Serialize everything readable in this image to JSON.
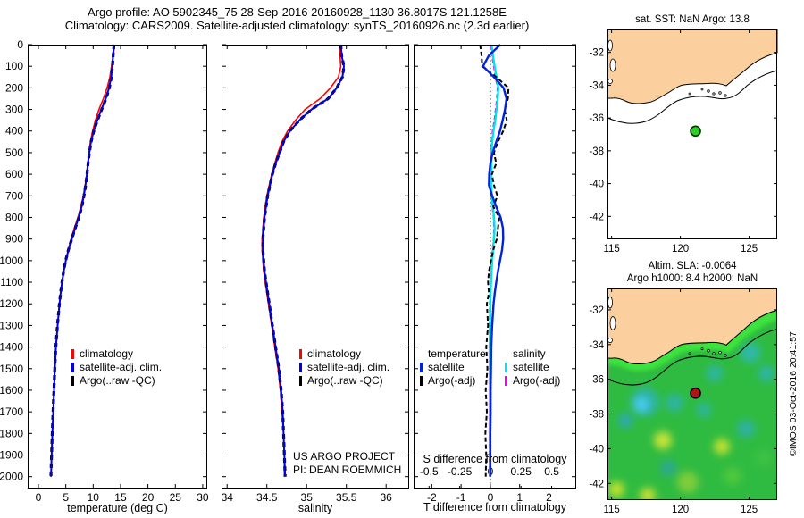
{
  "header": {
    "title_line1": "Argo profile: AO 5902345_75 28-Sep-2016 20160928_1130 36.8017S 121.1258E",
    "title_line2": "Climatology: CARS2009. Satellite-adjusted climatology: synTS_20160926.nc (2.3d earlier)"
  },
  "colors": {
    "climatology": "#ff0000",
    "satellite_adj": "#0000e0",
    "argo_raw": "#000000",
    "diff_T_satellite": "#0022dd",
    "diff_T_argo": "#000000",
    "diff_S_satellite": "#00e5e5",
    "diff_S_argo": "#ee00ee",
    "land": "#fbcf9e",
    "sea_base": "#2fbb41",
    "coast_glow": "#3ce33d",
    "marker_sst": "#2dcc2d",
    "marker_sla": "#b01515",
    "frame": "#000000"
  },
  "chart_data": [
    {
      "id": "temperature_profile",
      "type": "line",
      "xlabel": "temperature (deg C)",
      "xlim": [
        -1.96,
        30.83
      ],
      "ylim": [
        0,
        2055
      ],
      "xticks": [
        "0",
        "5",
        "10",
        "15",
        "20",
        "25",
        "30"
      ],
      "yticks": [
        0,
        100,
        200,
        300,
        400,
        500,
        600,
        700,
        800,
        900,
        1000,
        1100,
        1200,
        1300,
        1400,
        1500,
        1600,
        1700,
        1800,
        1900,
        2000
      ],
      "show_ylabels": true,
      "depth": [
        0,
        50,
        100,
        150,
        200,
        250,
        300,
        350,
        400,
        450,
        500,
        550,
        600,
        650,
        700,
        750,
        800,
        850,
        900,
        950,
        1000,
        1050,
        1100,
        1150,
        1200,
        1300,
        1400,
        1500,
        1600,
        1700,
        1800,
        1900,
        2000
      ],
      "series": [
        {
          "name": "climatology",
          "color": "#ff0000",
          "width": 1.6,
          "dash": "",
          "z": 1,
          "values": [
            13.9,
            13.7,
            13.35,
            13.05,
            12.55,
            11.85,
            11.05,
            10.4,
            9.9,
            9.5,
            9.25,
            9.0,
            8.8,
            8.55,
            8.2,
            7.75,
            7.2,
            6.55,
            5.95,
            5.45,
            5.0,
            4.6,
            4.3,
            4.05,
            3.85,
            3.5,
            3.2,
            3.0,
            2.85,
            2.7,
            2.55,
            2.42,
            2.3
          ]
        },
        {
          "name": "satellite-adj-clim",
          "color": "#0000e0",
          "width": 2,
          "dash": "",
          "z": 3,
          "values": [
            13.8,
            13.62,
            13.5,
            13.3,
            12.9,
            12.3,
            11.5,
            10.75,
            10.1,
            9.6,
            9.3,
            9.05,
            8.85,
            8.6,
            8.3,
            7.9,
            7.35,
            6.7,
            6.1,
            5.5,
            5.0,
            4.62,
            4.32,
            4.06,
            3.85,
            3.5,
            3.2,
            3.0,
            2.85,
            2.7,
            2.55,
            2.42,
            2.3
          ]
        },
        {
          "name": "argo-raw-qc",
          "color": "#000000",
          "width": 3.2,
          "dash": "5,4",
          "z": 2,
          "values": [
            13.8,
            13.65,
            13.52,
            13.32,
            12.95,
            12.35,
            11.55,
            10.8,
            10.12,
            9.63,
            9.32,
            9.06,
            8.87,
            8.63,
            8.32,
            7.93,
            7.38,
            6.72,
            6.08,
            5.48,
            4.98,
            4.6,
            4.3,
            4.04,
            3.83,
            3.48,
            3.18,
            2.98,
            2.83,
            2.68,
            2.53,
            2.4,
            2.28
          ]
        }
      ],
      "legend": [
        {
          "label": "climatology",
          "color": "#ff0000"
        },
        {
          "label": "satellite-adj. clim.",
          "color": "#0000e0"
        },
        {
          "label": "Argo(..raw -QC)",
          "color": "#000000"
        }
      ]
    },
    {
      "id": "salinity_profile",
      "type": "line",
      "xlabel": "salinity",
      "xlim": [
        33.93,
        36.29
      ],
      "ylim": [
        0,
        2055
      ],
      "xticks": [
        "34",
        "34.5",
        "35",
        "35.5",
        "36"
      ],
      "yticks": [
        0,
        100,
        200,
        300,
        400,
        500,
        600,
        700,
        800,
        900,
        1000,
        1100,
        1200,
        1300,
        1400,
        1500,
        1600,
        1700,
        1800,
        1900,
        2000
      ],
      "show_ylabels": false,
      "annotation_line1": "US ARGO PROJECT",
      "annotation_line2": "PI: DEAN ROEMMICH",
      "depth": [
        0,
        50,
        100,
        150,
        200,
        250,
        300,
        350,
        400,
        450,
        500,
        550,
        600,
        650,
        700,
        750,
        800,
        850,
        900,
        950,
        1000,
        1050,
        1100,
        1150,
        1200,
        1300,
        1400,
        1500,
        1600,
        1700,
        1800,
        1900,
        2000
      ],
      "series": [
        {
          "name": "climatology",
          "color": "#ff0000",
          "width": 1.6,
          "dash": "",
          "z": 1,
          "values": [
            35.42,
            35.42,
            35.43,
            35.4,
            35.3,
            35.17,
            34.98,
            34.86,
            34.76,
            34.69,
            34.64,
            34.6,
            34.56,
            34.53,
            34.5,
            34.48,
            34.46,
            34.45,
            34.44,
            34.44,
            34.45,
            34.46,
            34.48,
            34.5,
            34.52,
            34.56,
            34.6,
            34.64,
            34.67,
            34.69,
            34.71,
            34.72,
            34.72
          ]
        },
        {
          "name": "satellite-adj-clim",
          "color": "#0000e0",
          "width": 2,
          "dash": "",
          "z": 3,
          "values": [
            35.43,
            35.44,
            35.47,
            35.45,
            35.38,
            35.27,
            35.06,
            34.91,
            34.79,
            34.71,
            34.66,
            34.61,
            34.57,
            34.54,
            34.51,
            34.49,
            34.47,
            34.46,
            34.45,
            34.45,
            34.46,
            34.47,
            34.49,
            34.51,
            34.53,
            34.57,
            34.61,
            34.65,
            34.68,
            34.7,
            34.71,
            34.72,
            34.73
          ]
        },
        {
          "name": "argo-raw-qc",
          "color": "#000000",
          "width": 3.2,
          "dash": "5,4",
          "z": 2,
          "values": [
            35.43,
            35.44,
            35.47,
            35.45,
            35.38,
            35.27,
            35.06,
            34.91,
            34.79,
            34.71,
            34.66,
            34.61,
            34.57,
            34.54,
            34.51,
            34.49,
            34.47,
            34.46,
            34.45,
            34.45,
            34.46,
            34.47,
            34.49,
            34.51,
            34.53,
            34.57,
            34.61,
            34.65,
            34.68,
            34.7,
            34.71,
            34.72,
            34.73
          ]
        }
      ],
      "legend": [
        {
          "label": "climatology",
          "color": "#ff0000"
        },
        {
          "label": "satellite-adj. clim.",
          "color": "#0000e0"
        },
        {
          "label": "Argo(..raw -QC)",
          "color": "#000000"
        }
      ]
    },
    {
      "id": "difference_profile",
      "type": "line",
      "xlabel": "T difference from climatology",
      "xlabel_inner": "S difference from climatology",
      "xlim": [
        -2.62,
        2.93
      ],
      "S_xlim": [
        -0.626,
        0.7
      ],
      "ylim": [
        0,
        2055
      ],
      "xticks": [
        "-2",
        "-1",
        "0",
        "1",
        "2"
      ],
      "S_xticks": [
        "-0.5",
        "-0.25",
        "0",
        "0.25",
        "0.5"
      ],
      "yticks": [
        0,
        100,
        200,
        300,
        400,
        500,
        600,
        700,
        800,
        900,
        1000,
        1100,
        1200,
        1300,
        1400,
        1500,
        1600,
        1700,
        1800,
        1900,
        2000
      ],
      "show_ylabels": false,
      "zero_line": 0,
      "depth": [
        0,
        50,
        100,
        150,
        200,
        250,
        300,
        350,
        400,
        450,
        500,
        550,
        600,
        650,
        700,
        750,
        800,
        850,
        900,
        950,
        1000,
        1050,
        1100,
        1150,
        1200,
        1300,
        1400,
        1500,
        1600,
        1700,
        1800,
        1900,
        2000
      ],
      "series": [
        {
          "name": "T-satellite",
          "axis": "T",
          "color": "#0022dd",
          "width": 2.4,
          "dash": "",
          "z": 4,
          "values": [
            0.34,
            -0.05,
            -0.25,
            0.12,
            0.45,
            0.55,
            0.5,
            0.42,
            0.33,
            0.2,
            0.08,
            0.0,
            -0.04,
            -0.05,
            0.06,
            0.2,
            0.35,
            0.43,
            0.44,
            0.4,
            0.33,
            0.26,
            0.2,
            0.15,
            0.11,
            0.06,
            0.03,
            0.02,
            0.01,
            0.01,
            0.0,
            0.0,
            0.0
          ]
        },
        {
          "name": "T-argo-adj",
          "axis": "T",
          "color": "#000000",
          "width": 2,
          "dash": "5,3",
          "z": 3,
          "values": [
            -0.35,
            -0.3,
            -0.28,
            0.2,
            0.62,
            0.6,
            0.48,
            0.56,
            0.44,
            0.26,
            0.12,
            0.2,
            0.05,
            0.12,
            0.24,
            0.1,
            0.3,
            0.26,
            0.22,
            0.1,
            0.02,
            -0.05,
            -0.08,
            -0.05,
            -0.12,
            -0.08,
            -0.14,
            -0.1,
            -0.16,
            -0.12,
            -0.17,
            -0.14,
            -0.16
          ]
        },
        {
          "name": "S-satellite",
          "axis": "S",
          "color": "#00e5e5",
          "width": 2.4,
          "dash": "",
          "z": 2,
          "values": [
            0.01,
            0.02,
            0.035,
            0.05,
            0.065,
            0.06,
            0.05,
            0.04,
            0.025,
            0.015,
            0.01,
            0.008,
            0.006,
            0.006,
            0.012,
            0.02,
            0.03,
            0.035,
            0.03,
            0.022,
            0.015,
            0.01,
            0.005,
            0.002,
            0.0,
            -0.003,
            -0.005,
            -0.005,
            -0.005,
            -0.005,
            -0.005,
            -0.004,
            -0.004
          ]
        },
        {
          "name": "S-argo-adj",
          "axis": "S",
          "color": "#ee00ee",
          "width": 2.4,
          "dash": "5,3",
          "z": 1,
          "values": [
            0.0,
            0.015,
            0.03,
            0.045,
            0.06,
            0.055,
            0.045,
            0.035,
            0.02,
            0.012,
            0.008,
            0.006,
            0.005,
            0.005,
            0.01,
            0.018,
            0.028,
            0.032,
            0.028,
            0.02,
            0.012,
            0.008,
            0.004,
            0.0,
            -0.002,
            -0.004,
            -0.006,
            -0.006,
            -0.006,
            -0.006,
            -0.006,
            -0.005,
            -0.005
          ]
        }
      ],
      "legend_groups": [
        {
          "header": "temperature",
          "items": [
            {
              "label": "satellite",
              "color": "#0022dd"
            },
            {
              "label": "Argo(-adj)",
              "color": "#000000"
            }
          ]
        },
        {
          "header": "salinity",
          "items": [
            {
              "label": "satellite",
              "color": "#00e5e5"
            },
            {
              "label": "Argo(-adj)",
              "color": "#ee00ee"
            }
          ]
        }
      ]
    },
    {
      "id": "sst_map",
      "type": "map",
      "title": "sat. SST: NaN Argo: 13.8",
      "lon_lim": [
        114.7,
        127.04
      ],
      "lat_lim": [
        -30.6,
        -43.4
      ],
      "xticks": [
        "115",
        "120",
        "125"
      ],
      "yticks": [
        "-32",
        "-34",
        "-36",
        "-38",
        "-40",
        "-42"
      ],
      "marker": {
        "lon": 121.1,
        "lat": -36.8,
        "color": "#2dcc2d",
        "edge": "#003300"
      }
    },
    {
      "id": "sla_map",
      "type": "map-heat",
      "title_line1": "Altim. SLA: -0.0064",
      "title_line2": "Argo h1000: 8.4 h2000: NaN",
      "watermark": "©IMOS 03-Oct-2016 20:41:57",
      "lon_lim": [
        114.7,
        127.04
      ],
      "lat_lim": [
        -30.77,
        -42.96
      ],
      "xticks": [
        "115",
        "120",
        "125"
      ],
      "yticks": [
        "-32",
        "-34",
        "-36",
        "-38",
        "-40",
        "-42"
      ],
      "marker": {
        "lon": 121.1,
        "lat": -36.8,
        "color": "#b01515",
        "edge": "#000000"
      },
      "blobs": [
        {
          "x": 42,
          "y": 127,
          "r": 16,
          "c": "#2fb4a4"
        },
        {
          "x": 38,
          "y": 130,
          "r": 8,
          "c": "#49ccf2"
        },
        {
          "x": 75,
          "y": 128,
          "r": 10,
          "c": "#2db4a0"
        },
        {
          "x": 20,
          "y": 148,
          "r": 8,
          "c": "#2fa8b4"
        },
        {
          "x": 108,
          "y": 136,
          "r": 8,
          "c": "#2db4a0"
        },
        {
          "x": 120,
          "y": 95,
          "r": 9,
          "c": "#2db4a4"
        },
        {
          "x": 160,
          "y": 72,
          "r": 11,
          "c": "#2eb8ac"
        },
        {
          "x": 178,
          "y": 95,
          "r": 9,
          "c": "#2fb4a8"
        },
        {
          "x": 155,
          "y": 157,
          "r": 10,
          "c": "#2eb0a0"
        },
        {
          "x": 68,
          "y": 201,
          "r": 9,
          "c": "#2aa890"
        },
        {
          "x": 62,
          "y": 170,
          "r": 10,
          "c": "#c6e23a"
        },
        {
          "x": 128,
          "y": 177,
          "r": 9,
          "c": "#bfe032"
        },
        {
          "x": 10,
          "y": 225,
          "r": 9,
          "c": "#bfe032"
        },
        {
          "x": 45,
          "y": 232,
          "r": 9,
          "c": "#c2dd35"
        },
        {
          "x": 90,
          "y": 217,
          "r": 12,
          "c": "#7fcc3a"
        },
        {
          "x": 140,
          "y": 210,
          "r": 10,
          "c": "#4fc83e"
        },
        {
          "x": 175,
          "y": 190,
          "r": 9,
          "c": "#3fc244"
        }
      ]
    }
  ]
}
